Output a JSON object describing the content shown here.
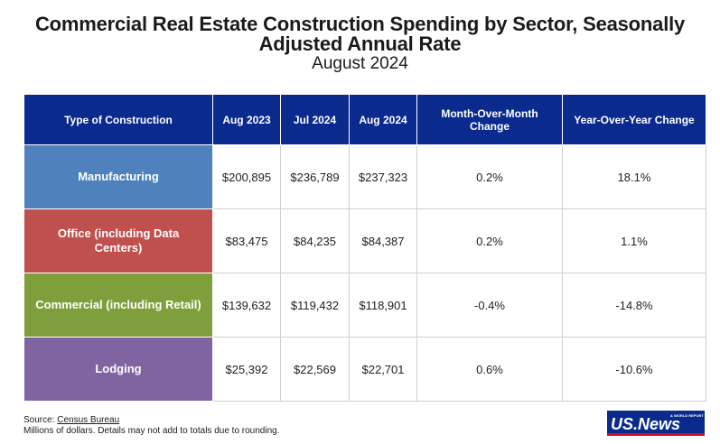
{
  "title": "Commercial Real Estate Construction Spending by Sector, Seasonally Adjusted Annual Rate",
  "subtitle": "August 2024",
  "chart_data": {
    "type": "table",
    "title": "Commercial Real Estate Construction Spending by Sector, Seasonally Adjusted Annual Rate",
    "subtitle": "August 2024",
    "columns": [
      "Type of Construction",
      "Aug 2023",
      "Jul 2024",
      "Aug 2024",
      "Month-Over-Month Change",
      "Year-Over-Year Change"
    ],
    "rows": [
      {
        "sector": "Manufacturing",
        "color": "#4f81bd",
        "aug2023": "$200,895",
        "jul2024": "$236,789",
        "aug2024": "$237,323",
        "mom": "0.2%",
        "yoy": "18.1%"
      },
      {
        "sector": "Office (including Data Centers)",
        "color": "#c0504d",
        "aug2023": "$83,475",
        "jul2024": "$84,235",
        "aug2024": "$84,387",
        "mom": "0.2%",
        "yoy": "1.1%"
      },
      {
        "sector": "Commercial (including Retail)",
        "color": "#7f9f3c",
        "aug2023": "$139,632",
        "jul2024": "$119,432",
        "aug2024": "$118,901",
        "mom": "-0.4%",
        "yoy": "-14.8%"
      },
      {
        "sector": "Lodging",
        "color": "#8064a2",
        "aug2023": "$25,392",
        "jul2024": "$22,569",
        "aug2024": "$22,701",
        "mom": "0.6%",
        "yoy": "-10.6%"
      }
    ]
  },
  "colors": {
    "header_bg": "#0a2a8e",
    "header_text": "#ffffff",
    "logo_blue": "#0a2a8e",
    "logo_red": "#c8102e"
  },
  "footnote": {
    "source_prefix": "Source: ",
    "source_link": "Census Bureau",
    "note": "Millions of dollars. Details may not add to totals due to rounding."
  },
  "logo": {
    "main": "US.News",
    "tag": "& WORLD REPORT"
  }
}
